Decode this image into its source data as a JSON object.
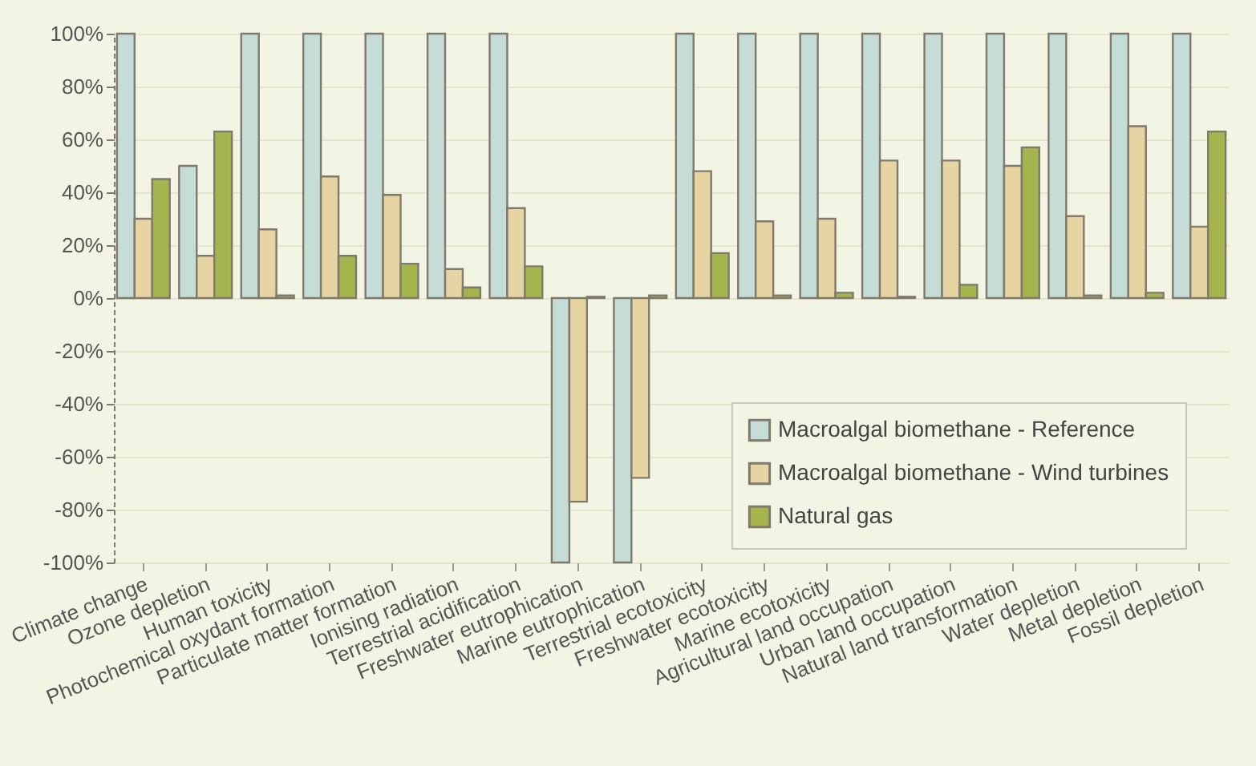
{
  "chart_data": {
    "type": "bar",
    "categories": [
      "Climate change",
      "Ozone depletion",
      "Human toxicity",
      "Photochemical oxydant formation",
      "Particulate matter formation",
      "Ionising radiation",
      "Terrestrial acidification",
      "Freshwater eutrophication",
      "Marine eutrophication",
      "Terrestrial ecotoxicity",
      "Freshwater ecotoxicity",
      "Marine ecotoxicity",
      "Agricultural land occupation",
      "Urban land occupation",
      "Natural land transformation",
      "Water depletion",
      "Metal depletion",
      "Fossil depletion"
    ],
    "series": [
      {
        "name": "Macroalgal biomethane - Reference",
        "color": "#c5ddd6",
        "values": [
          100,
          50,
          100,
          100,
          100,
          100,
          100,
          -100,
          -100,
          100,
          100,
          100,
          100,
          100,
          100,
          100,
          100,
          100
        ]
      },
      {
        "name": "Macroalgal biomethane - Wind turbines",
        "color": "#e6d4a3",
        "values": [
          30,
          16,
          26,
          46,
          39,
          11,
          34,
          -77,
          -68,
          48,
          29,
          30,
          52,
          52,
          50,
          31,
          65,
          27
        ]
      },
      {
        "name": "Natural gas",
        "color": "#a6b44e",
        "values": [
          45,
          63,
          1,
          16,
          13,
          4,
          12,
          0.5,
          1,
          17,
          1,
          2,
          0.5,
          5,
          57,
          1,
          2,
          63
        ]
      }
    ],
    "ylim": [
      -100,
      100
    ],
    "yticks": [
      {
        "value": -100,
        "label": "-100%"
      },
      {
        "value": -80,
        "label": "-80%"
      },
      {
        "value": -60,
        "label": "-60%"
      },
      {
        "value": -40,
        "label": "-40%"
      },
      {
        "value": -20,
        "label": "-20%"
      },
      {
        "value": 0,
        "label": "0%"
      },
      {
        "value": 20,
        "label": "20%"
      },
      {
        "value": 40,
        "label": "40%"
      },
      {
        "value": 60,
        "label": "60%"
      },
      {
        "value": 80,
        "label": "80%"
      },
      {
        "value": 100,
        "label": "100%"
      }
    ],
    "grid": "y",
    "legend": "bottom right"
  }
}
